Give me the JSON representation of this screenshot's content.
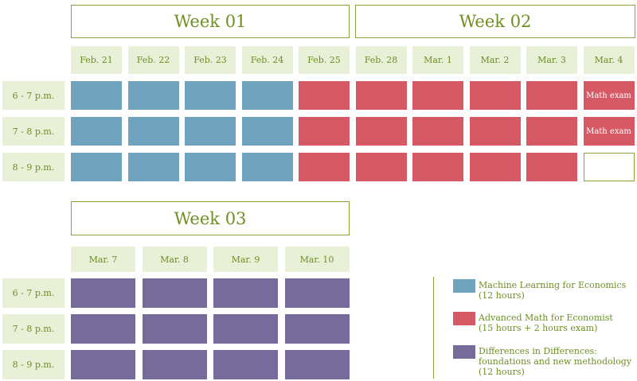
{
  "weeks": [
    {
      "label": "Week 01"
    },
    {
      "label": "Week 02"
    },
    {
      "label": "Week 03"
    }
  ],
  "time_slots": [
    "6 - 7 p.m.",
    "7 - 8 p.m.",
    "8 - 9 p.m."
  ],
  "block1": {
    "dates": [
      "Feb. 21",
      "Feb. 22",
      "Feb. 23",
      "Feb. 24",
      "Feb. 25",
      "Feb. 28",
      "Mar. 1",
      "Mar. 2",
      "Mar. 3",
      "Mar. 4"
    ],
    "grid": [
      [
        "ml",
        "ml",
        "ml",
        "ml",
        "am",
        "am",
        "am",
        "am",
        "am",
        "exam"
      ],
      [
        "ml",
        "ml",
        "ml",
        "ml",
        "am",
        "am",
        "am",
        "am",
        "am",
        "exam"
      ],
      [
        "ml",
        "ml",
        "ml",
        "ml",
        "am",
        "am",
        "am",
        "am",
        "am",
        "empty"
      ]
    ],
    "exam_label": "Math exam"
  },
  "block2": {
    "dates": [
      "Mar. 7",
      "Mar. 8",
      "Mar. 9",
      "Mar. 10"
    ],
    "grid": [
      [
        "did",
        "did",
        "did",
        "did"
      ],
      [
        "did",
        "did",
        "did",
        "did"
      ],
      [
        "did",
        "did",
        "did",
        "did"
      ]
    ]
  },
  "colors": {
    "ml": "#6fa3bd",
    "am": "#d65a65",
    "did": "#776b9b",
    "accent": "#6e8f22",
    "header_bg": "#e9f0d8"
  },
  "legend": [
    {
      "key": "ml",
      "title": "Machine Learning for Economics",
      "detail": "(12 hours)"
    },
    {
      "key": "am",
      "title": "Advanced Math for Economist",
      "detail": "(15 hours + 2 hours exam)"
    },
    {
      "key": "did",
      "title": "Differences in Differences: foundations and new methodology",
      "detail": "(12 hours)"
    }
  ]
}
